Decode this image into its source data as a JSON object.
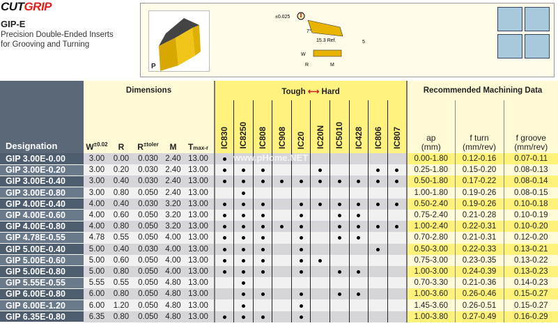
{
  "brand": {
    "logo": "CUTGRIP",
    "logo_part1": "CUT",
    "logo_part2": "GRIP"
  },
  "product": {
    "title": "GIP-E",
    "subtitle_line1": "Precision Double-Ended Inserts",
    "subtitle_line2": "for Grooving and Turning",
    "photo_label": "P"
  },
  "diagram": {
    "tolerance": "±0.025",
    "angle": "7°",
    "length": "15.3 Ref.",
    "dim5": "5",
    "w": "W",
    "r": "R",
    "m": "M"
  },
  "watermark": "www.pHome.NET",
  "table": {
    "designation_header": "Designation",
    "dimensions_header": "Dimensions",
    "grades_header_left": "Tough",
    "grades_header_right": "Hard",
    "machining_header": "Recommended  Machining Data",
    "dim_cols": [
      {
        "main": "W",
        "sup": "±0.02"
      },
      {
        "main": "R",
        "sup": ""
      },
      {
        "main": "R",
        "sup": "±toler"
      },
      {
        "main": "M",
        "sup": ""
      },
      {
        "main": "T",
        "sub": "max-r"
      }
    ],
    "grades": [
      "IC830",
      "IC8250",
      "IC808",
      "IC908",
      "IC20",
      "IC20N",
      "IC5010",
      "IC428",
      "IC806",
      "IC807"
    ],
    "machining_cols": [
      {
        "l1": "ap",
        "l2": "(mm)"
      },
      {
        "l1": "f turn",
        "l2": "(mm/rev)"
      },
      {
        "l1": "f groove",
        "l2": "(mm/rev)"
      }
    ],
    "rows": [
      {
        "designation": "GIP 3.00E-0.00",
        "dims": [
          "3.00",
          "0.00",
          "0.030",
          "2.40",
          "13.00"
        ],
        "grades": [
          1,
          0,
          0,
          0,
          0,
          0,
          0,
          0,
          0,
          0
        ],
        "ap": "0.00-1.80",
        "fturn": "0.12-0.16",
        "fgroove": "0.07-0.11"
      },
      {
        "designation": "GIP 3.00E-0.20",
        "dims": [
          "3.00",
          "0.20",
          "0.030",
          "2.40",
          "13.00"
        ],
        "grades": [
          1,
          1,
          1,
          0,
          0,
          1,
          0,
          0,
          1,
          1
        ],
        "ap": "0.25-1.80",
        "fturn": "0.15-0.20",
        "fgroove": "0.08-0.13"
      },
      {
        "designation": "GIP 3.00E-0.40",
        "dims": [
          "3.00",
          "0.40",
          "0.030",
          "2.40",
          "13.00"
        ],
        "grades": [
          1,
          1,
          1,
          1,
          1,
          1,
          1,
          1,
          1,
          1
        ],
        "ap": "0.50-1.80",
        "fturn": "0.17-0.22",
        "fgroove": "0.08-0.14"
      },
      {
        "designation": "GIP 3.00E-0.80",
        "dims": [
          "3.00",
          "0.80",
          "0.050",
          "2.40",
          "13.00"
        ],
        "grades": [
          0,
          1,
          0,
          0,
          0,
          0,
          0,
          0,
          0,
          0
        ],
        "ap": "1.00-1.80",
        "fturn": "0.19-0.26",
        "fgroove": "0.08-0.15"
      },
      {
        "designation": "GIP 4.00E-0.40",
        "dims": [
          "4.00",
          "0.40",
          "0.030",
          "3.20",
          "13.00"
        ],
        "grades": [
          1,
          1,
          1,
          0,
          1,
          1,
          1,
          1,
          1,
          1
        ],
        "ap": "0.50-2.40",
        "fturn": "0.19-0.26",
        "fgroove": "0.10-0.18"
      },
      {
        "designation": "GIP 4.00E-0.60",
        "dims": [
          "4.00",
          "0.60",
          "0.050",
          "3.20",
          "13.00"
        ],
        "grades": [
          1,
          1,
          1,
          0,
          1,
          0,
          1,
          1,
          0,
          0
        ],
        "ap": "0.75-2.40",
        "fturn": "0.21-0.28",
        "fgroove": "0.10-0.19"
      },
      {
        "designation": "GIP 4.00E-0.80",
        "dims": [
          "4.00",
          "0.80",
          "0.050",
          "3.20",
          "13.00"
        ],
        "grades": [
          1,
          1,
          1,
          1,
          1,
          0,
          1,
          1,
          1,
          1
        ],
        "ap": "1.00-2.40",
        "fturn": "0.22-0.31",
        "fgroove": "0.10-0.20"
      },
      {
        "designation": "GIP 4.78E-0.55",
        "dims": [
          "4.78",
          "0.55",
          "0.050",
          "4.00",
          "13.00"
        ],
        "grades": [
          1,
          1,
          1,
          0,
          1,
          0,
          1,
          1,
          0,
          0
        ],
        "ap": "0.70-2.80",
        "fturn": "0.21-0.31",
        "fgroove": "0.12-0.20"
      },
      {
        "designation": "GIP 5.00E-0.40",
        "dims": [
          "5.00",
          "0.40",
          "0.030",
          "4.00",
          "13.00"
        ],
        "grades": [
          1,
          1,
          1,
          0,
          1,
          0,
          0,
          0,
          1,
          0
        ],
        "ap": "0.50-3.00",
        "fturn": "0.22-0.33",
        "fgroove": "0.13-0.21"
      },
      {
        "designation": "GIP 5.00E-0.60",
        "dims": [
          "5.00",
          "0.60",
          "0.050",
          "4.00",
          "13.00"
        ],
        "grades": [
          1,
          1,
          1,
          0,
          1,
          1,
          0,
          0,
          0,
          0
        ],
        "ap": "0.75-3.00",
        "fturn": "0.23-0.35",
        "fgroove": "0.13-0.22"
      },
      {
        "designation": "GIP 5.00E-0.80",
        "dims": [
          "5.00",
          "0.80",
          "0.050",
          "4.00",
          "13.00"
        ],
        "grades": [
          1,
          1,
          1,
          0,
          1,
          0,
          1,
          1,
          0,
          0
        ],
        "ap": "1.00-3.00",
        "fturn": "0.24-0.39",
        "fgroove": "0.13-0.23"
      },
      {
        "designation": "GIP 5.55E-0.55",
        "dims": [
          "5.55",
          "0.55",
          "0.050",
          "4.80",
          "13.00"
        ],
        "grades": [
          0,
          1,
          0,
          0,
          0,
          0,
          0,
          0,
          0,
          0
        ],
        "ap": "0.70-3.30",
        "fturn": "0.21-0.36",
        "fgroove": "0.14-0.23"
      },
      {
        "designation": "GIP 6.00E-0.80",
        "dims": [
          "6.00",
          "0.80",
          "0.050",
          "4.80",
          "13.00"
        ],
        "grades": [
          0,
          1,
          1,
          0,
          1,
          0,
          1,
          1,
          0,
          0
        ],
        "ap": "1.00-3.60",
        "fturn": "0.26-0.46",
        "fgroove": "0.15-0.27"
      },
      {
        "designation": "GIP 6.00E-1.20",
        "dims": [
          "6.00",
          "1.20",
          "0.050",
          "4.80",
          "13.00"
        ],
        "grades": [
          0,
          1,
          0,
          0,
          1,
          0,
          0,
          0,
          0,
          0
        ],
        "ap": "1.45-3.60",
        "fturn": "0.26-0.51",
        "fgroove": "0.15-0.27"
      },
      {
        "designation": "GIP 6.35E-0.80",
        "dims": [
          "6.35",
          "0.80",
          "0.050",
          "4.80",
          "13.00"
        ],
        "grades": [
          1,
          1,
          1,
          0,
          1,
          0,
          0,
          0,
          0,
          0
        ],
        "ap": "1.00-3.80",
        "fturn": "0.27-0.49",
        "fgroove": "0.16-0.29"
      }
    ]
  },
  "colors": {
    "brand_red": "#e0201c",
    "grade_yellow": "#fff27f",
    "designation_bg": "#4e5d6d",
    "insert_gold": "#e8b400"
  }
}
